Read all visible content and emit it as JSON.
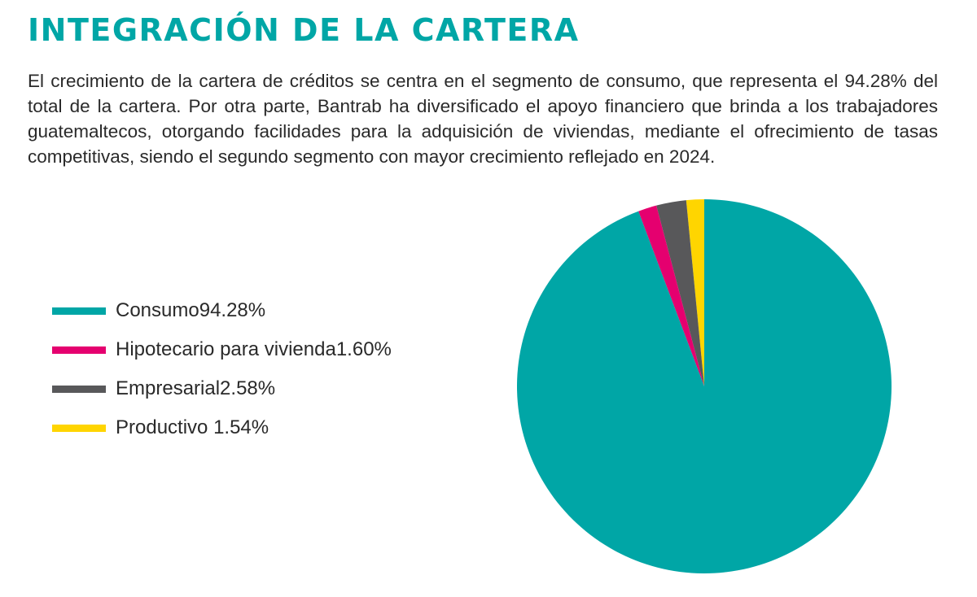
{
  "header": {
    "title": "INTEGRACIÓN DE LA CARTERA",
    "paragraph": "El crecimiento de la cartera de créditos se centra en el segmento de consumo, que representa el 94.28% del total de la cartera. Por otra parte, Bantrab ha diversificado el apoyo financiero que brinda a los trabajadores guatemaltecos, otorgando facilidades para la adquisición de viviendas, mediante el ofrecimiento de tasas competitivas, siendo el segundo segmento con mayor crecimiento reflejado en 2024."
  },
  "colors": {
    "title": "#00a6a6",
    "consumo": "#00a6a6",
    "hipotecario": "#e5006f",
    "empresarial": "#58585a",
    "productivo": "#ffd500"
  },
  "chart_data": {
    "type": "pie",
    "title": "",
    "legend_position": "left",
    "start_angle": "top",
    "direction": "clockwise",
    "slices": [
      {
        "label": "Consumo",
        "value_text": "94.28%",
        "value": 94.28,
        "color": "#00a6a6"
      },
      {
        "label": "Hipotecario para vivienda",
        "value_text": "1.60%",
        "value": 1.6,
        "color": "#e5006f"
      },
      {
        "label": "Empresarial",
        "value_text": "2.58%",
        "value": 2.58,
        "color": "#58585a"
      },
      {
        "label": "Productivo ",
        "value_text": "1.54%",
        "value": 1.54,
        "color": "#ffd500"
      }
    ]
  }
}
